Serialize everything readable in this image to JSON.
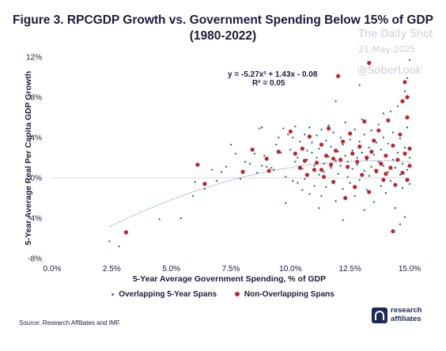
{
  "title_line1": "Figure 3. RPCGDP Growth vs. Government Spending Below 15% of GDP",
  "title_line2": "(1980-2022)",
  "watermark": {
    "line1": "The Daily Shot",
    "date": "21-May-2025",
    "handle": "@SoberLook"
  },
  "source": "Source: Research Affiliates and IMF.",
  "logo": {
    "line1": "research",
    "line2": "affiliates"
  },
  "equation": {
    "line1": "y = -5.27x² + 1.43x - 0.08",
    "line2": "R² = 0.05"
  },
  "colors": {
    "overlapping": "#2f6f8f",
    "non_overlapping": "#c0262a",
    "trendline": "#5b8fb0",
    "logo": "#1c2a5a"
  },
  "chart_data": {
    "type": "scatter",
    "xlabel": "5-Year Average Government Spending, % of GDP",
    "ylabel": "5-Year Average Real Per Capita GDP Growth",
    "xlim": [
      0,
      0.15
    ],
    "ylim": [
      -0.08,
      0.12
    ],
    "x_ticks": [
      "0.0%",
      "2.5%",
      "5.0%",
      "7.5%",
      "10.0%",
      "12.5%",
      "15.0%"
    ],
    "y_ticks": [
      "12%",
      "8%",
      "4%",
      "0%",
      "-4%",
      "-8%"
    ],
    "grid": false,
    "legend_position": "bottom",
    "trendline": {
      "type": "polynomial",
      "coefficients": {
        "a": -5.27,
        "b": 1.43,
        "c": -0.08
      },
      "x_range": [
        0.024,
        0.15
      ]
    },
    "series": [
      {
        "name": "Overlapping 5-Year Spans",
        "marker": "small-dot",
        "points": [
          [
            0.024,
            -0.063
          ],
          [
            0.028,
            -0.068
          ],
          [
            0.045,
            -0.041
          ],
          [
            0.054,
            -0.04
          ],
          [
            0.059,
            -0.018
          ],
          [
            0.06,
            -0.004
          ],
          [
            0.064,
            -0.011
          ],
          [
            0.067,
            0.008
          ],
          [
            0.069,
            -0.003
          ],
          [
            0.071,
            0.006
          ],
          [
            0.073,
            0.011
          ],
          [
            0.075,
            0.033
          ],
          [
            0.077,
            0.024
          ],
          [
            0.079,
            -0.001
          ],
          [
            0.081,
            0.016
          ],
          [
            0.083,
            0.014
          ],
          [
            0.085,
            0.024
          ],
          [
            0.086,
            0.005
          ],
          [
            0.088,
            0.012
          ],
          [
            0.089,
            0.022
          ],
          [
            0.09,
            0.011
          ],
          [
            0.087,
            0.049
          ],
          [
            0.088,
            0.05
          ],
          [
            0.092,
            0.01
          ],
          [
            0.093,
            0.008
          ],
          [
            0.094,
            0.033
          ],
          [
            0.095,
            0.04
          ],
          [
            0.096,
            0.025
          ],
          [
            0.097,
            0.049
          ],
          [
            0.098,
            0.001
          ],
          [
            0.098,
            -0.025
          ],
          [
            0.099,
            0.043
          ],
          [
            0.1,
            0.028
          ],
          [
            0.101,
            0.04
          ],
          [
            0.101,
            -0.003
          ],
          [
            0.102,
            0.016
          ],
          [
            0.102,
            0.051
          ],
          [
            0.103,
            0.02
          ],
          [
            0.103,
            -0.005
          ],
          [
            0.104,
            0.036
          ],
          [
            0.105,
            -0.012
          ],
          [
            0.105,
            0.009
          ],
          [
            0.106,
            0.043
          ],
          [
            0.106,
            -0.001
          ],
          [
            0.107,
            0.027
          ],
          [
            0.107,
            0.018
          ],
          [
            0.108,
            0.05
          ],
          [
            0.108,
            -0.016
          ],
          [
            0.109,
            0.025
          ],
          [
            0.109,
            0.035
          ],
          [
            0.11,
            0.012
          ],
          [
            0.11,
            -0.008
          ],
          [
            0.111,
            0.042
          ],
          [
            0.111,
            0.02
          ],
          [
            0.112,
            0.003
          ],
          [
            0.112,
            0.029
          ],
          [
            0.113,
            -0.018
          ],
          [
            0.113,
            0.048
          ],
          [
            0.114,
            0.014
          ],
          [
            0.114,
            0.006
          ],
          [
            0.115,
            0.037
          ],
          [
            0.115,
            -0.009
          ],
          [
            0.116,
            0.021
          ],
          [
            0.116,
            0.052
          ],
          [
            0.117,
            0.01
          ],
          [
            0.117,
            0.031
          ],
          [
            0.118,
            -0.003
          ],
          [
            0.118,
            0.045
          ],
          [
            0.119,
            0.017
          ],
          [
            0.119,
            -0.023
          ],
          [
            0.12,
            0.026
          ],
          [
            0.12,
            0.004
          ],
          [
            0.121,
            0.04
          ],
          [
            0.121,
            0.012
          ],
          [
            0.122,
            -0.011
          ],
          [
            0.122,
            0.033
          ],
          [
            0.123,
            0.022
          ],
          [
            0.123,
            0.055
          ],
          [
            0.124,
            0.001
          ],
          [
            0.124,
            0.016
          ],
          [
            0.125,
            0.038
          ],
          [
            0.125,
            -0.005
          ],
          [
            0.126,
            0.027
          ],
          [
            0.126,
            0.009
          ],
          [
            0.127,
            0.048
          ],
          [
            0.127,
            -0.018
          ],
          [
            0.128,
            0.02
          ],
          [
            0.128,
            0.013
          ],
          [
            0.129,
            0.036
          ],
          [
            0.129,
            -0.002
          ],
          [
            0.13,
            0.025
          ],
          [
            0.13,
            0.058
          ],
          [
            0.131,
            0.007
          ],
          [
            0.131,
            0.043
          ],
          [
            0.132,
            -0.012
          ],
          [
            0.132,
            0.018
          ],
          [
            0.133,
            0.03
          ],
          [
            0.133,
            0.002
          ],
          [
            0.134,
            0.047
          ],
          [
            0.134,
            0.011
          ],
          [
            0.135,
            -0.024
          ],
          [
            0.135,
            0.023
          ],
          [
            0.136,
            0.035
          ],
          [
            0.136,
            0.005
          ],
          [
            0.137,
            0.016
          ],
          [
            0.137,
            0.053
          ],
          [
            0.138,
            -0.008
          ],
          [
            0.138,
            0.028
          ],
          [
            0.139,
            0.012
          ],
          [
            0.139,
            0.04
          ],
          [
            0.14,
            -0.015
          ],
          [
            0.14,
            0.021
          ],
          [
            0.141,
            0.006
          ],
          [
            0.141,
            0.034
          ],
          [
            0.142,
            0.066
          ],
          [
            0.142,
            -0.003
          ],
          [
            0.143,
            0.018
          ],
          [
            0.143,
            0.045
          ],
          [
            0.144,
            0.01
          ],
          [
            0.144,
            -0.03
          ],
          [
            0.145,
            0.025
          ],
          [
            0.145,
            0.071
          ],
          [
            0.146,
            0.003
          ],
          [
            0.146,
            0.039
          ],
          [
            0.147,
            0.014
          ],
          [
            0.147,
            -0.01
          ],
          [
            0.148,
            0.03
          ],
          [
            0.148,
            0.086
          ],
          [
            0.149,
            0.008
          ],
          [
            0.149,
            0.05
          ],
          [
            0.15,
            0.02
          ],
          [
            0.15,
            -0.006
          ],
          [
            0.149,
            0.099
          ],
          [
            0.15,
            0.117
          ],
          [
            0.148,
            -0.039
          ],
          [
            0.146,
            -0.046
          ],
          [
            0.143,
            -0.052
          ],
          [
            0.131,
            -0.032
          ],
          [
            0.122,
            -0.042
          ],
          [
            0.112,
            -0.03
          ],
          [
            0.129,
            0.092
          ],
          [
            0.139,
            0.064
          ],
          [
            0.119,
            0.076
          ]
        ]
      },
      {
        "name": "Non-Overlapping Spans",
        "marker": "large-dot",
        "points": [
          [
            0.031,
            -0.054
          ],
          [
            0.061,
            0.013
          ],
          [
            0.064,
            -0.006
          ],
          [
            0.08,
            0.006
          ],
          [
            0.084,
            0.028
          ],
          [
            0.09,
            0.019
          ],
          [
            0.091,
            0.007
          ],
          [
            0.095,
            0.026
          ],
          [
            0.1,
            0.046
          ],
          [
            0.102,
            0.024
          ],
          [
            0.104,
            0.01
          ],
          [
            0.105,
            0.029
          ],
          [
            0.106,
            0.017
          ],
          [
            0.107,
            0.003
          ],
          [
            0.108,
            0.041
          ],
          [
            0.11,
            0.008
          ],
          [
            0.111,
            0.015
          ],
          [
            0.113,
            0.033
          ],
          [
            0.114,
            0.001
          ],
          [
            0.115,
            0.022
          ],
          [
            0.116,
            0.049
          ],
          [
            0.117,
            0.013
          ],
          [
            0.118,
            -0.004
          ],
          [
            0.119,
            0.027
          ],
          [
            0.12,
            0.101
          ],
          [
            0.121,
            0.018
          ],
          [
            0.122,
            0.036
          ],
          [
            0.123,
            -0.02
          ],
          [
            0.124,
            0.011
          ],
          [
            0.125,
            0.044
          ],
          [
            0.126,
            0.024
          ],
          [
            0.127,
            -0.009
          ],
          [
            0.128,
            0.016
          ],
          [
            0.129,
            0.031
          ],
          [
            0.13,
            0.003
          ],
          [
            0.131,
            0.056
          ],
          [
            0.132,
            0.02
          ],
          [
            0.133,
            -0.014
          ],
          [
            0.134,
            0.026
          ],
          [
            0.135,
            0.037
          ],
          [
            0.136,
            0.007
          ],
          [
            0.137,
            0.047
          ],
          [
            0.138,
            0.014
          ],
          [
            0.139,
            -0.002
          ],
          [
            0.14,
            0.022
          ],
          [
            0.141,
            0.057
          ],
          [
            0.142,
            0.01
          ],
          [
            0.143,
            0.032
          ],
          [
            0.144,
            -0.007
          ],
          [
            0.145,
            0.018
          ],
          [
            0.146,
            0.043
          ],
          [
            0.147,
            0.005
          ],
          [
            0.148,
            0.024
          ],
          [
            0.149,
            0.06
          ],
          [
            0.15,
            0.012
          ],
          [
            0.15,
            0.029
          ],
          [
            0.149,
            -0.002
          ],
          [
            0.148,
            0.095
          ],
          [
            0.143,
            -0.053
          ],
          [
            0.147,
            0.076
          ],
          [
            0.133,
            0.114
          ],
          [
            0.132,
            0.02
          ],
          [
            0.118,
            0.019
          ],
          [
            0.113,
            0.008
          ],
          [
            0.14,
            0.004
          ],
          [
            0.149,
            0.08
          ]
        ]
      }
    ]
  }
}
